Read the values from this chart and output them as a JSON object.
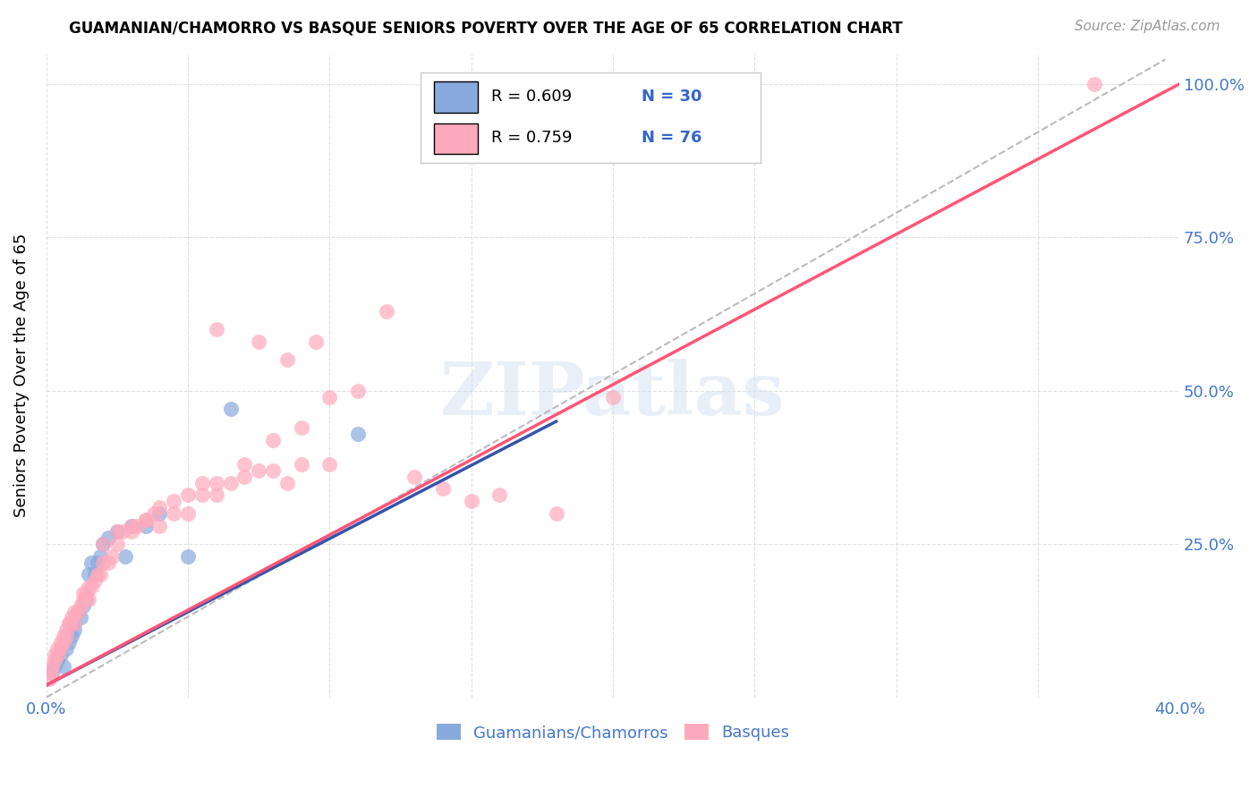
{
  "title": "GUAMANIAN/CHAMORRO VS BASQUE SENIORS POVERTY OVER THE AGE OF 65 CORRELATION CHART",
  "source": "Source: ZipAtlas.com",
  "ylabel": "Seniors Poverty Over the Age of 65",
  "xlim": [
    0.0,
    0.4
  ],
  "ylim": [
    0.0,
    1.05
  ],
  "xticks": [
    0.0,
    0.05,
    0.1,
    0.15,
    0.2,
    0.25,
    0.3,
    0.35,
    0.4
  ],
  "ytick_positions": [
    0.0,
    0.25,
    0.5,
    0.75,
    1.0
  ],
  "xtick_labels": [
    "0.0%",
    "",
    "",
    "",
    "",
    "",
    "",
    "",
    "40.0%"
  ],
  "right_ytick_labels": [
    "",
    "25.0%",
    "50.0%",
    "75.0%",
    "100.0%"
  ],
  "blue_color": "#88AADD",
  "pink_color": "#FFAABC",
  "blue_line_color": "#3355AA",
  "pink_line_color": "#FF5577",
  "dash_color": "#BBBBBB",
  "watermark": "ZIPatlas",
  "blue_scatter_x": [
    0.002,
    0.003,
    0.004,
    0.005,
    0.005,
    0.006,
    0.007,
    0.008,
    0.009,
    0.01,
    0.01,
    0.011,
    0.012,
    0.013,
    0.014,
    0.015,
    0.016,
    0.017,
    0.018,
    0.019,
    0.02,
    0.022,
    0.025,
    0.028,
    0.03,
    0.035,
    0.04,
    0.05,
    0.065,
    0.11
  ],
  "blue_scatter_y": [
    0.04,
    0.05,
    0.06,
    0.07,
    0.08,
    0.05,
    0.08,
    0.09,
    0.1,
    0.11,
    0.12,
    0.14,
    0.13,
    0.15,
    0.16,
    0.2,
    0.22,
    0.2,
    0.22,
    0.23,
    0.25,
    0.26,
    0.27,
    0.23,
    0.28,
    0.28,
    0.3,
    0.23,
    0.47,
    0.43
  ],
  "pink_scatter_x": [
    0.001,
    0.002,
    0.002,
    0.003,
    0.003,
    0.004,
    0.004,
    0.005,
    0.005,
    0.006,
    0.006,
    0.007,
    0.007,
    0.008,
    0.008,
    0.009,
    0.01,
    0.01,
    0.011,
    0.012,
    0.013,
    0.013,
    0.014,
    0.015,
    0.015,
    0.016,
    0.017,
    0.018,
    0.019,
    0.02,
    0.022,
    0.023,
    0.025,
    0.027,
    0.03,
    0.032,
    0.035,
    0.038,
    0.04,
    0.045,
    0.05,
    0.055,
    0.06,
    0.065,
    0.07,
    0.075,
    0.08,
    0.085,
    0.09,
    0.1,
    0.02,
    0.025,
    0.03,
    0.035,
    0.04,
    0.045,
    0.05,
    0.055,
    0.06,
    0.07,
    0.08,
    0.09,
    0.1,
    0.11,
    0.13,
    0.14,
    0.15,
    0.16,
    0.18,
    0.2,
    0.06,
    0.075,
    0.085,
    0.095,
    0.12,
    0.37
  ],
  "pink_scatter_y": [
    0.03,
    0.04,
    0.05,
    0.06,
    0.07,
    0.07,
    0.08,
    0.08,
    0.09,
    0.09,
    0.1,
    0.1,
    0.11,
    0.12,
    0.12,
    0.13,
    0.12,
    0.14,
    0.14,
    0.15,
    0.16,
    0.17,
    0.17,
    0.16,
    0.18,
    0.18,
    0.19,
    0.2,
    0.2,
    0.22,
    0.22,
    0.23,
    0.25,
    0.27,
    0.27,
    0.28,
    0.29,
    0.3,
    0.28,
    0.3,
    0.3,
    0.33,
    0.33,
    0.35,
    0.36,
    0.37,
    0.37,
    0.35,
    0.38,
    0.38,
    0.25,
    0.27,
    0.28,
    0.29,
    0.31,
    0.32,
    0.33,
    0.35,
    0.35,
    0.38,
    0.42,
    0.44,
    0.49,
    0.5,
    0.36,
    0.34,
    0.32,
    0.33,
    0.3,
    0.49,
    0.6,
    0.58,
    0.55,
    0.58,
    0.63,
    1.0
  ],
  "blue_line_x": [
    0.0,
    0.18
  ],
  "blue_line_y": [
    0.02,
    0.45
  ],
  "pink_line_x": [
    0.0,
    0.4
  ],
  "pink_line_y": [
    0.02,
    1.0
  ],
  "dash_line_x": [
    0.0,
    0.395
  ],
  "dash_line_y": [
    0.0,
    1.04
  ]
}
